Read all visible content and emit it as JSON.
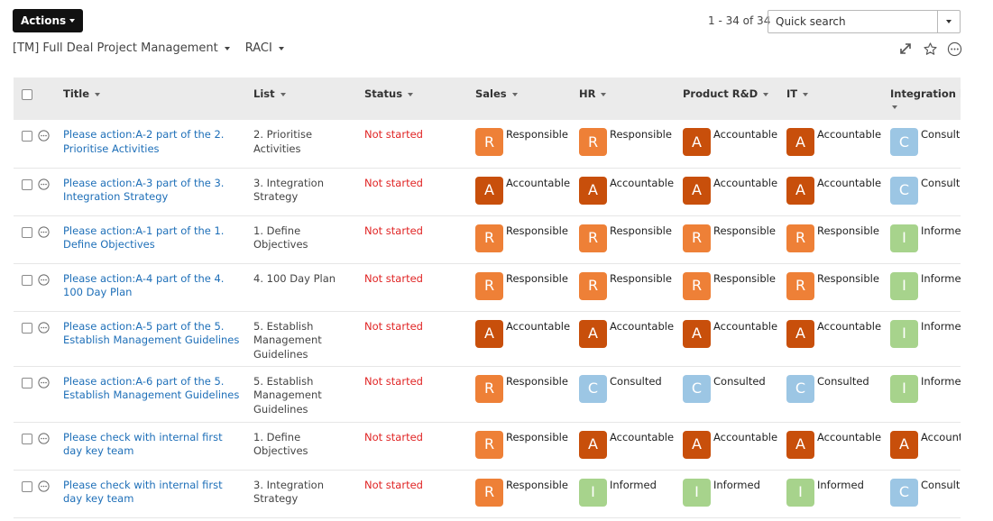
{
  "header": {
    "actions_label": "Actions",
    "range_text": "1 - 34 of 34",
    "search_placeholder": "Quick search",
    "breadcrumb": [
      {
        "label": "[TM] Full Deal Project Management"
      },
      {
        "label": "RACI"
      }
    ],
    "icons": [
      "expand-icon",
      "star-icon",
      "more-options-icon"
    ]
  },
  "colors": {
    "R": "#ee8037",
    "A": "#c84f0b",
    "C": "#9cc6e4",
    "I": "#a7d38c",
    "status_not_started": "#e02424",
    "link": "#1e6fb8"
  },
  "table": {
    "columns": [
      {
        "label": "Title"
      },
      {
        "label": "List"
      },
      {
        "label": "Status"
      },
      {
        "label": "Sales"
      },
      {
        "label": "HR"
      },
      {
        "label": "Product R&D"
      },
      {
        "label": "IT"
      },
      {
        "label": "Integration lead"
      }
    ],
    "rows": [
      {
        "title": "Please action:A-2 part of the 2. Prioritise Activities",
        "list": "2. Prioritise Activities",
        "status": "Not started",
        "raci": [
          {
            "code": "R",
            "label": "Responsible"
          },
          {
            "code": "R",
            "label": "Responsible"
          },
          {
            "code": "A",
            "label": "Accountable"
          },
          {
            "code": "A",
            "label": "Accountable"
          },
          {
            "code": "C",
            "label": "Consulted"
          }
        ]
      },
      {
        "title": "Please action:A-3 part of the 3. Integration Strategy",
        "list": "3. Integration Strategy",
        "status": "Not started",
        "raci": [
          {
            "code": "A",
            "label": "Accountable"
          },
          {
            "code": "A",
            "label": "Accountable"
          },
          {
            "code": "A",
            "label": "Accountable"
          },
          {
            "code": "A",
            "label": "Accountable"
          },
          {
            "code": "C",
            "label": "Consulted"
          }
        ]
      },
      {
        "title": "Please action:A-1 part of the 1. Define Objectives",
        "list": "1. Define Objectives",
        "status": "Not started",
        "raci": [
          {
            "code": "R",
            "label": "Responsible"
          },
          {
            "code": "R",
            "label": "Responsible"
          },
          {
            "code": "R",
            "label": "Responsible"
          },
          {
            "code": "R",
            "label": "Responsible"
          },
          {
            "code": "I",
            "label": "Informed"
          }
        ]
      },
      {
        "title": "Please action:A-4 part of the 4. 100 Day Plan",
        "list": "4. 100 Day Plan",
        "status": "Not started",
        "raci": [
          {
            "code": "R",
            "label": "Responsible"
          },
          {
            "code": "R",
            "label": "Responsible"
          },
          {
            "code": "R",
            "label": "Responsible"
          },
          {
            "code": "R",
            "label": "Responsible"
          },
          {
            "code": "I",
            "label": "Informed"
          }
        ]
      },
      {
        "title": "Please action:A-5 part of the 5. Establish Management Guidelines",
        "list": "5. Establish Management Guidelines",
        "status": "Not started",
        "raci": [
          {
            "code": "A",
            "label": "Accountable"
          },
          {
            "code": "A",
            "label": "Accountable"
          },
          {
            "code": "A",
            "label": "Accountable"
          },
          {
            "code": "A",
            "label": "Accountable"
          },
          {
            "code": "I",
            "label": "Informed"
          }
        ]
      },
      {
        "title": "Please action:A-6 part of the 5. Establish Management Guidelines",
        "list": "5. Establish Management Guidelines",
        "status": "Not started",
        "raci": [
          {
            "code": "R",
            "label": "Responsible"
          },
          {
            "code": "C",
            "label": "Consulted"
          },
          {
            "code": "C",
            "label": "Consulted"
          },
          {
            "code": "C",
            "label": "Consulted"
          },
          {
            "code": "I",
            "label": "Informed"
          }
        ]
      },
      {
        "title": "Please check with internal first day key team",
        "list": "1. Define Objectives",
        "status": "Not started",
        "raci": [
          {
            "code": "R",
            "label": "Responsible"
          },
          {
            "code": "A",
            "label": "Accountable"
          },
          {
            "code": "A",
            "label": "Accountable"
          },
          {
            "code": "A",
            "label": "Accountable"
          },
          {
            "code": "A",
            "label": "Accountable"
          }
        ]
      },
      {
        "title": "Please check with internal first day key team",
        "list": "3. Integration Strategy",
        "status": "Not started",
        "raci": [
          {
            "code": "R",
            "label": "Responsible"
          },
          {
            "code": "I",
            "label": "Informed"
          },
          {
            "code": "I",
            "label": "Informed"
          },
          {
            "code": "I",
            "label": "Informed"
          },
          {
            "code": "C",
            "label": "Consulted"
          }
        ]
      }
    ]
  }
}
